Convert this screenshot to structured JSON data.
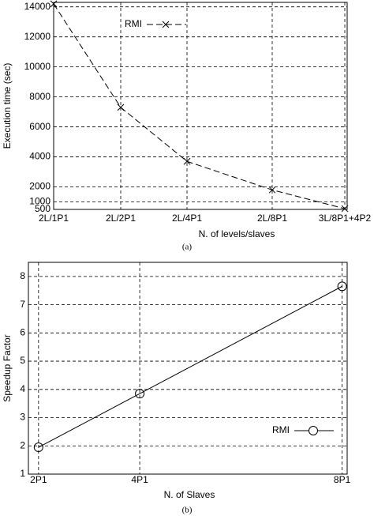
{
  "chart_data": [
    {
      "type": "line",
      "caption": "(a)",
      "x_label": "N. of levels/slaves",
      "y_label": "Execution time (sec)",
      "categories": [
        "2L/1P1",
        "2L/2P1",
        "2L/4P1",
        "2L/8P1",
        "3L/8P1+4P2"
      ],
      "series": [
        {
          "name": "RMI",
          "color": "#000000",
          "marker": "x",
          "line_style": "dashed",
          "values": [
            14200,
            7300,
            3700,
            1800,
            550
          ]
        }
      ],
      "ylim": [
        500,
        14300
      ],
      "yticks": [
        500,
        1000,
        2000,
        4000,
        6000,
        8000,
        10000,
        12000,
        14000
      ],
      "grid": true,
      "legend": "upper left"
    },
    {
      "type": "scatter-line",
      "caption": "(b)",
      "x_label": "N. of Slaves",
      "y_label": "Speedup Factor",
      "x": [
        2,
        4,
        8
      ],
      "series": [
        {
          "name": "RMI",
          "color": "#000000",
          "marker": "o",
          "line_style": "solid",
          "values": [
            1.95,
            3.85,
            7.65
          ]
        }
      ],
      "xlim": [
        1.8,
        8.1
      ],
      "xticks": [
        {
          "value": 2,
          "label": "2P1"
        },
        {
          "value": 4,
          "label": "4P1"
        },
        {
          "value": 8,
          "label": "8P1"
        }
      ],
      "ylim": [
        1,
        8.5
      ],
      "yticks": [
        1,
        2,
        3,
        4,
        5,
        6,
        7,
        8
      ],
      "grid": true,
      "legend": "lower right"
    }
  ]
}
